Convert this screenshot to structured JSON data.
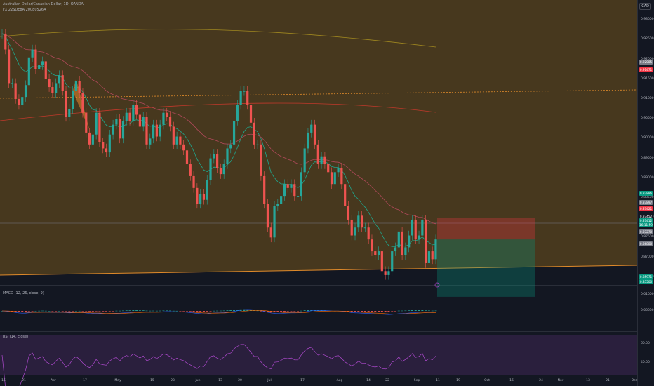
{
  "header": {
    "symbol_line": "Australian Dollar/Canadian Dollar, 1D, OANDA",
    "indicator_line": "FX 22SDE8A 20080526A"
  },
  "currency": "CAD",
  "indicators": {
    "macd_label": "MACD (12, 26, close, 9)",
    "rsi_label": "RSI (14, close)"
  },
  "price_axis": [
    "0.93500",
    "0.93000",
    "0.92500",
    "0.92000",
    "0.91500",
    "0.91000",
    "0.90500",
    "0.90000",
    "0.89500",
    "0.89000",
    "0.88500",
    "0.88000",
    "0.87500",
    "0.87000",
    "0.86500"
  ],
  "price_tags": [
    {
      "text": "0.92085",
      "color": "#787b86"
    },
    {
      "text": "0.91471",
      "color": "#f23645"
    },
    {
      "text": "0.87886",
      "color": "#089981"
    },
    {
      "text": "0.87897",
      "color": "#787b86"
    },
    {
      "text": "0.87421",
      "color": "#f23645"
    },
    {
      "text": "0.87452",
      "color": "#131722"
    },
    {
      "text": "0.87412",
      "color": "#089981"
    },
    {
      "text": "16:11:59",
      "color": "#089981"
    },
    {
      "text": "0.87270",
      "color": "#787b86"
    },
    {
      "text": "0.86880",
      "color": "#787b86"
    },
    {
      "text": "0.85971",
      "color": "#089981"
    },
    {
      "text": "0.85500",
      "color": "#089981"
    }
  ],
  "macd_axis": [
    "0.01000",
    "0.00000"
  ],
  "rsi_axis": [
    "60.00",
    "40.00"
  ],
  "date_axis": [
    "15",
    "21",
    "Apr",
    "17",
    "May",
    "15",
    "23",
    "Jun",
    "13",
    "20",
    "Jul",
    "17",
    "Aug",
    "14",
    "22",
    "Sep",
    "11",
    "19",
    "Oct",
    "16",
    "24",
    "Nov",
    "13",
    "21",
    "Dec"
  ],
  "colors": {
    "up": "#26a69a",
    "down": "#ef5350",
    "channel_fill": "#4a3a1f",
    "ema_short": "#1fa88e",
    "ema_long": "#b0495a",
    "sma": "#a08820",
    "resistance": "#e08a2a"
  },
  "chart_data": {
    "type": "candlestick",
    "symbol": "AUDCAD",
    "timeframe": "1D",
    "ylim": [
      0.863,
      0.935
    ],
    "y_ticks": [
      0.935,
      0.93,
      0.925,
      0.92,
      0.915,
      0.91,
      0.905,
      0.9,
      0.895,
      0.89,
      0.885,
      0.88,
      0.875,
      0.87,
      0.865
    ],
    "closes": [
      0.9265,
      0.9225,
      0.914,
      0.914,
      0.91,
      0.9085,
      0.9105,
      0.9135,
      0.9205,
      0.9225,
      0.9175,
      0.9185,
      0.9195,
      0.915,
      0.913,
      0.9115,
      0.914,
      0.916,
      0.912,
      0.9055,
      0.9075,
      0.912,
      0.9145,
      0.9115,
      0.9065,
      0.9015,
      0.8985,
      0.901,
      0.9065,
      0.899,
      0.8975,
      0.8965,
      0.901,
      0.9035,
      0.905,
      0.9,
      0.9045,
      0.9065,
      0.9045,
      0.9085,
      0.906,
      0.903,
      0.9055,
      0.8985,
      0.9,
      0.9035,
      0.9005,
      0.9035,
      0.9065,
      0.9055,
      0.903,
      0.8985,
      0.9005,
      0.8985,
      0.897,
      0.8935,
      0.8905,
      0.8875,
      0.8835,
      0.886,
      0.8845,
      0.8895,
      0.895,
      0.896,
      0.8925,
      0.891,
      0.8935,
      0.8975,
      0.8985,
      0.9045,
      0.9085,
      0.912,
      0.912,
      0.9085,
      0.904,
      0.8985,
      0.8985,
      0.8905,
      0.8835,
      0.8775,
      0.875,
      0.883,
      0.8835,
      0.8855,
      0.8885,
      0.8875,
      0.8885,
      0.8855,
      0.8855,
      0.8915,
      0.8975,
      0.9015,
      0.9035,
      0.8985,
      0.8935,
      0.8955,
      0.8935,
      0.8915,
      0.8885,
      0.8915,
      0.8925,
      0.8885,
      0.883,
      0.8795,
      0.8755,
      0.8775,
      0.8805,
      0.8775,
      0.8775,
      0.8745,
      0.8715,
      0.8705,
      0.8715,
      0.8665,
      0.8655,
      0.8665,
      0.8715,
      0.8725,
      0.8765,
      0.8705,
      0.8725,
      0.8755,
      0.8795,
      0.8745,
      0.8755,
      0.8795,
      0.8685,
      0.8715,
      0.8695,
      0.8745
    ],
    "indicators": [
      {
        "name": "MACD",
        "params": "12, 26, close, 9",
        "y_ticks": [
          0.01,
          0.0
        ]
      },
      {
        "name": "RSI",
        "params": "14, close",
        "y_ticks": [
          60,
          40
        ]
      }
    ],
    "position_tool": {
      "entry": 0.8745,
      "stop": 0.88,
      "target": 0.86
    }
  }
}
